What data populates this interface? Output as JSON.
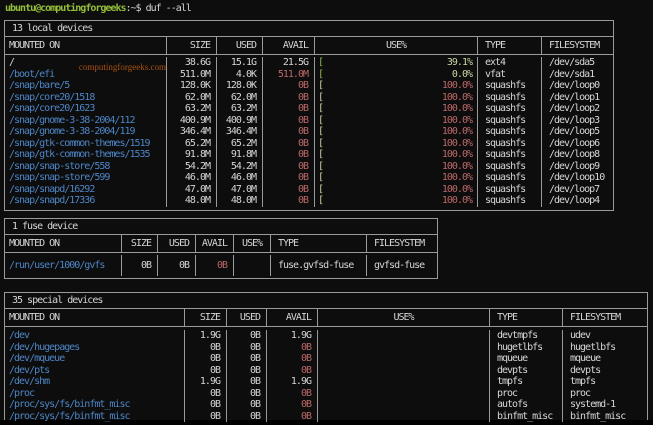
{
  "terminal": {
    "prompt_user_host": "ubuntu@computingforgeeks",
    "prompt_suffix": ":~$ ",
    "command": "duf --all"
  },
  "watermark": "computingforgeeks.com",
  "colors": {
    "background": "#0d0d0d",
    "foreground": "#d6d6d6",
    "border": "#9a9a9a",
    "mount_blue": "#4d86c6",
    "prompt_green": "#94bf3a",
    "alert_red": "#bd6868",
    "watermark_orange": "#a8520f"
  },
  "tables": [
    {
      "title": "13 local devices",
      "headers": [
        "MOUNTED ON",
        "SIZE",
        "USED",
        "AVAIL",
        "USE%",
        "TYPE",
        "FILESYSTEM"
      ],
      "rows": [
        {
          "m": "/",
          "mc": "fg",
          "s": "38.6G",
          "u": "15.1G",
          "a": "21.5G",
          "ac": "fg",
          "bar": {
            "f": "#######",
            "e": ".............",
            "c": "g"
          },
          "p": "39.1%",
          "t": "ext4",
          "f": "/dev/sda5"
        },
        {
          "m": "/boot/efi",
          "s": "511.0M",
          "u": "4.0K",
          "a": "511.0M",
          "ac": "redv",
          "bar": {
            "f": "",
            "e": "....................",
            "c": "g"
          },
          "p": "0.0%",
          "t": "vfat",
          "f": "/dev/sda1"
        },
        {
          "m": "/snap/bare/5",
          "s": "128.0K",
          "u": "128.0K",
          "a": "0B",
          "ac": "redv",
          "bar": {
            "f": "####################",
            "e": "",
            "c": "r"
          },
          "p": "100.0%",
          "t": "squashfs",
          "f": "/dev/loop0"
        },
        {
          "m": "/snap/core20/1518",
          "s": "62.0M",
          "u": "62.0M",
          "a": "0B",
          "ac": "redv",
          "bar": {
            "f": "####################",
            "e": "",
            "c": "r"
          },
          "p": "100.0%",
          "t": "squashfs",
          "f": "/dev/loop1"
        },
        {
          "m": "/snap/core20/1623",
          "s": "63.2M",
          "u": "63.2M",
          "a": "0B",
          "ac": "redv",
          "bar": {
            "f": "####################",
            "e": "",
            "c": "r"
          },
          "p": "100.0%",
          "t": "squashfs",
          "f": "/dev/loop2"
        },
        {
          "m": "/snap/gnome-3-38-2004/112",
          "s": "400.9M",
          "u": "400.9M",
          "a": "0B",
          "ac": "redv",
          "bar": {
            "f": "####################",
            "e": "",
            "c": "r"
          },
          "p": "100.0%",
          "t": "squashfs",
          "f": "/dev/loop3"
        },
        {
          "m": "/snap/gnome-3-38-2004/119",
          "s": "346.4M",
          "u": "346.4M",
          "a": "0B",
          "ac": "redv",
          "bar": {
            "f": "####################",
            "e": "",
            "c": "r"
          },
          "p": "100.0%",
          "t": "squashfs",
          "f": "/dev/loop5"
        },
        {
          "m": "/snap/gtk-common-themes/1519",
          "s": "65.2M",
          "u": "65.2M",
          "a": "0B",
          "ac": "redv",
          "bar": {
            "f": "####################",
            "e": "",
            "c": "r"
          },
          "p": "100.0%",
          "t": "squashfs",
          "f": "/dev/loop6"
        },
        {
          "m": "/snap/gtk-common-themes/1535",
          "s": "91.8M",
          "u": "91.8M",
          "a": "0B",
          "ac": "redv",
          "bar": {
            "f": "####################",
            "e": "",
            "c": "r"
          },
          "p": "100.0%",
          "t": "squashfs",
          "f": "/dev/loop8"
        },
        {
          "m": "/snap/snap-store/558",
          "s": "54.2M",
          "u": "54.2M",
          "a": "0B",
          "ac": "redv",
          "bar": {
            "f": "####################",
            "e": "",
            "c": "r"
          },
          "p": "100.0%",
          "t": "squashfs",
          "f": "/dev/loop9"
        },
        {
          "m": "/snap/snap-store/599",
          "s": "46.0M",
          "u": "46.0M",
          "a": "0B",
          "ac": "redv",
          "bar": {
            "f": "####################",
            "e": "",
            "c": "r"
          },
          "p": "100.0%",
          "t": "squashfs",
          "f": "/dev/loop10"
        },
        {
          "m": "/snap/snapd/16292",
          "s": "47.0M",
          "u": "47.0M",
          "a": "0B",
          "ac": "redv",
          "bar": {
            "f": "####################",
            "e": "",
            "c": "r"
          },
          "p": "100.0%",
          "t": "squashfs",
          "f": "/dev/loop7"
        },
        {
          "m": "/snap/snapd/17336",
          "s": "48.0M",
          "u": "48.0M",
          "a": "0B",
          "ac": "redv",
          "bar": {
            "f": "####################",
            "e": "",
            "c": "r"
          },
          "p": "100.0%",
          "t": "squashfs",
          "f": "/dev/loop4"
        }
      ]
    },
    {
      "title": "1 fuse device",
      "headers": [
        "MOUNTED ON",
        "SIZE",
        "USED",
        "AVAIL",
        "USE%",
        "TYPE",
        "FILESYSTEM"
      ],
      "rows": [
        {
          "m": "/run/user/1000/gvfs",
          "s": "0B",
          "u": "0B",
          "a": "0B",
          "ac": "redv",
          "bar": null,
          "p": "",
          "t": "fuse.gvfsd-fuse",
          "f": "gvfsd-fuse"
        }
      ]
    },
    {
      "title": "35 special devices",
      "headers": [
        "MOUNTED ON",
        "SIZE",
        "USED",
        "AVAIL",
        "USE%",
        "TYPE",
        "FILESYSTEM"
      ],
      "rows": [
        {
          "m": "/dev",
          "s": "1.9G",
          "u": "0B",
          "a": "1.9G",
          "ac": "fg",
          "bar": null,
          "p": "",
          "t": "devtmpfs",
          "f": "udev"
        },
        {
          "m": "/dev/hugepages",
          "s": "0B",
          "u": "0B",
          "a": "0B",
          "ac": "redv",
          "bar": null,
          "p": "",
          "t": "hugetlbfs",
          "f": "hugetlbfs"
        },
        {
          "m": "/dev/mqueue",
          "s": "0B",
          "u": "0B",
          "a": "0B",
          "ac": "redv",
          "bar": null,
          "p": "",
          "t": "mqueue",
          "f": "mqueue"
        },
        {
          "m": "/dev/pts",
          "s": "0B",
          "u": "0B",
          "a": "0B",
          "ac": "redv",
          "bar": null,
          "p": "",
          "t": "devpts",
          "f": "devpts"
        },
        {
          "m": "/dev/shm",
          "s": "1.9G",
          "u": "0B",
          "a": "1.9G",
          "ac": "fg",
          "bar": null,
          "p": "",
          "t": "tmpfs",
          "f": "tmpfs"
        },
        {
          "m": "/proc",
          "s": "0B",
          "u": "0B",
          "a": "0B",
          "ac": "redv",
          "bar": null,
          "p": "",
          "t": "proc",
          "f": "proc"
        },
        {
          "m": "/proc/sys/fs/binfmt_misc",
          "s": "0B",
          "u": "0B",
          "a": "0B",
          "ac": "redv",
          "bar": null,
          "p": "",
          "t": "autofs",
          "f": "systemd-1"
        },
        {
          "m": "/proc/sys/fs/binfmt_misc",
          "s": "0B",
          "u": "0B",
          "a": "0B",
          "ac": "redv",
          "bar": null,
          "p": "",
          "t": "binfmt_misc",
          "f": "binfmt_misc"
        }
      ]
    }
  ]
}
